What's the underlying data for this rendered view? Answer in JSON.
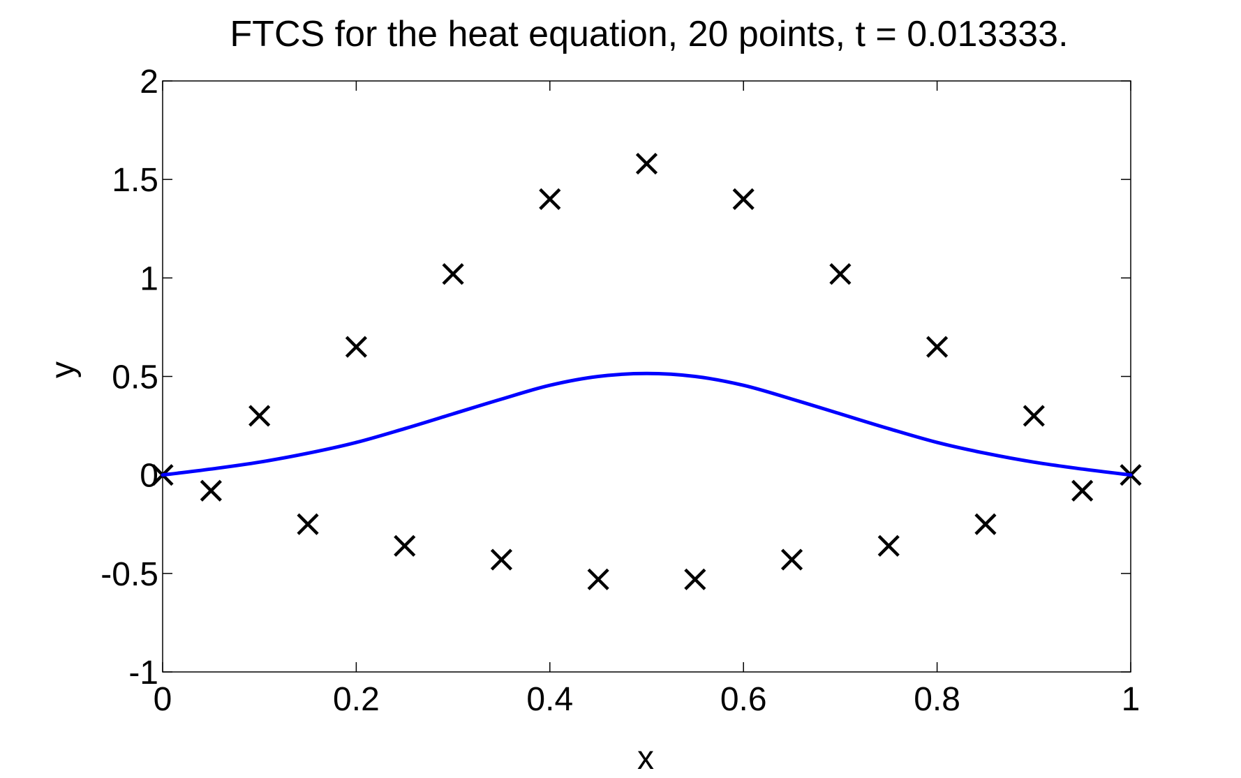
{
  "chart_data": {
    "type": "line",
    "title": "FTCS for the heat equation, 20 points, t = 0.013333.",
    "xlabel": "x",
    "ylabel": "y",
    "xlim": [
      0,
      1
    ],
    "ylim": [
      -1,
      2
    ],
    "x_ticks": [
      0,
      0.2,
      0.4,
      0.6,
      0.8,
      1
    ],
    "x_tick_labels": [
      "0",
      "0.2",
      "0.4",
      "0.6",
      "0.8",
      "1"
    ],
    "y_ticks": [
      -1,
      -0.5,
      0,
      0.5,
      1,
      1.5,
      2
    ],
    "y_tick_labels": [
      "-1",
      "-0.5",
      "0",
      "0.5",
      "1",
      "1.5",
      "2"
    ],
    "grid": false,
    "legend": "none",
    "series": [
      {
        "style": "markers",
        "marker": "x",
        "color": "#000000",
        "x": [
          0,
          0.05,
          0.1,
          0.15,
          0.2,
          0.25,
          0.3,
          0.35,
          0.4,
          0.45,
          0.5,
          0.55,
          0.6,
          0.65,
          0.7,
          0.75,
          0.8,
          0.85,
          0.9,
          0.95,
          1
        ],
        "y": [
          0,
          -0.08,
          0.3,
          -0.25,
          0.65,
          -0.36,
          1.02,
          -0.43,
          1.4,
          -0.53,
          1.58,
          -0.53,
          1.4,
          -0.43,
          1.02,
          -0.36,
          0.65,
          -0.25,
          0.3,
          -0.08,
          0
        ]
      },
      {
        "style": "line",
        "color": "#0000ff",
        "x": [
          0,
          0.05,
          0.1,
          0.15,
          0.2,
          0.25,
          0.3,
          0.35,
          0.4,
          0.45,
          0.5,
          0.55,
          0.6,
          0.65,
          0.7,
          0.75,
          0.8,
          0.85,
          0.9,
          0.95,
          1
        ],
        "y": [
          0,
          0.03,
          0.065,
          0.11,
          0.165,
          0.235,
          0.31,
          0.385,
          0.455,
          0.5,
          0.515,
          0.5,
          0.455,
          0.385,
          0.31,
          0.235,
          0.165,
          0.11,
          0.065,
          0.03,
          0
        ]
      }
    ]
  }
}
